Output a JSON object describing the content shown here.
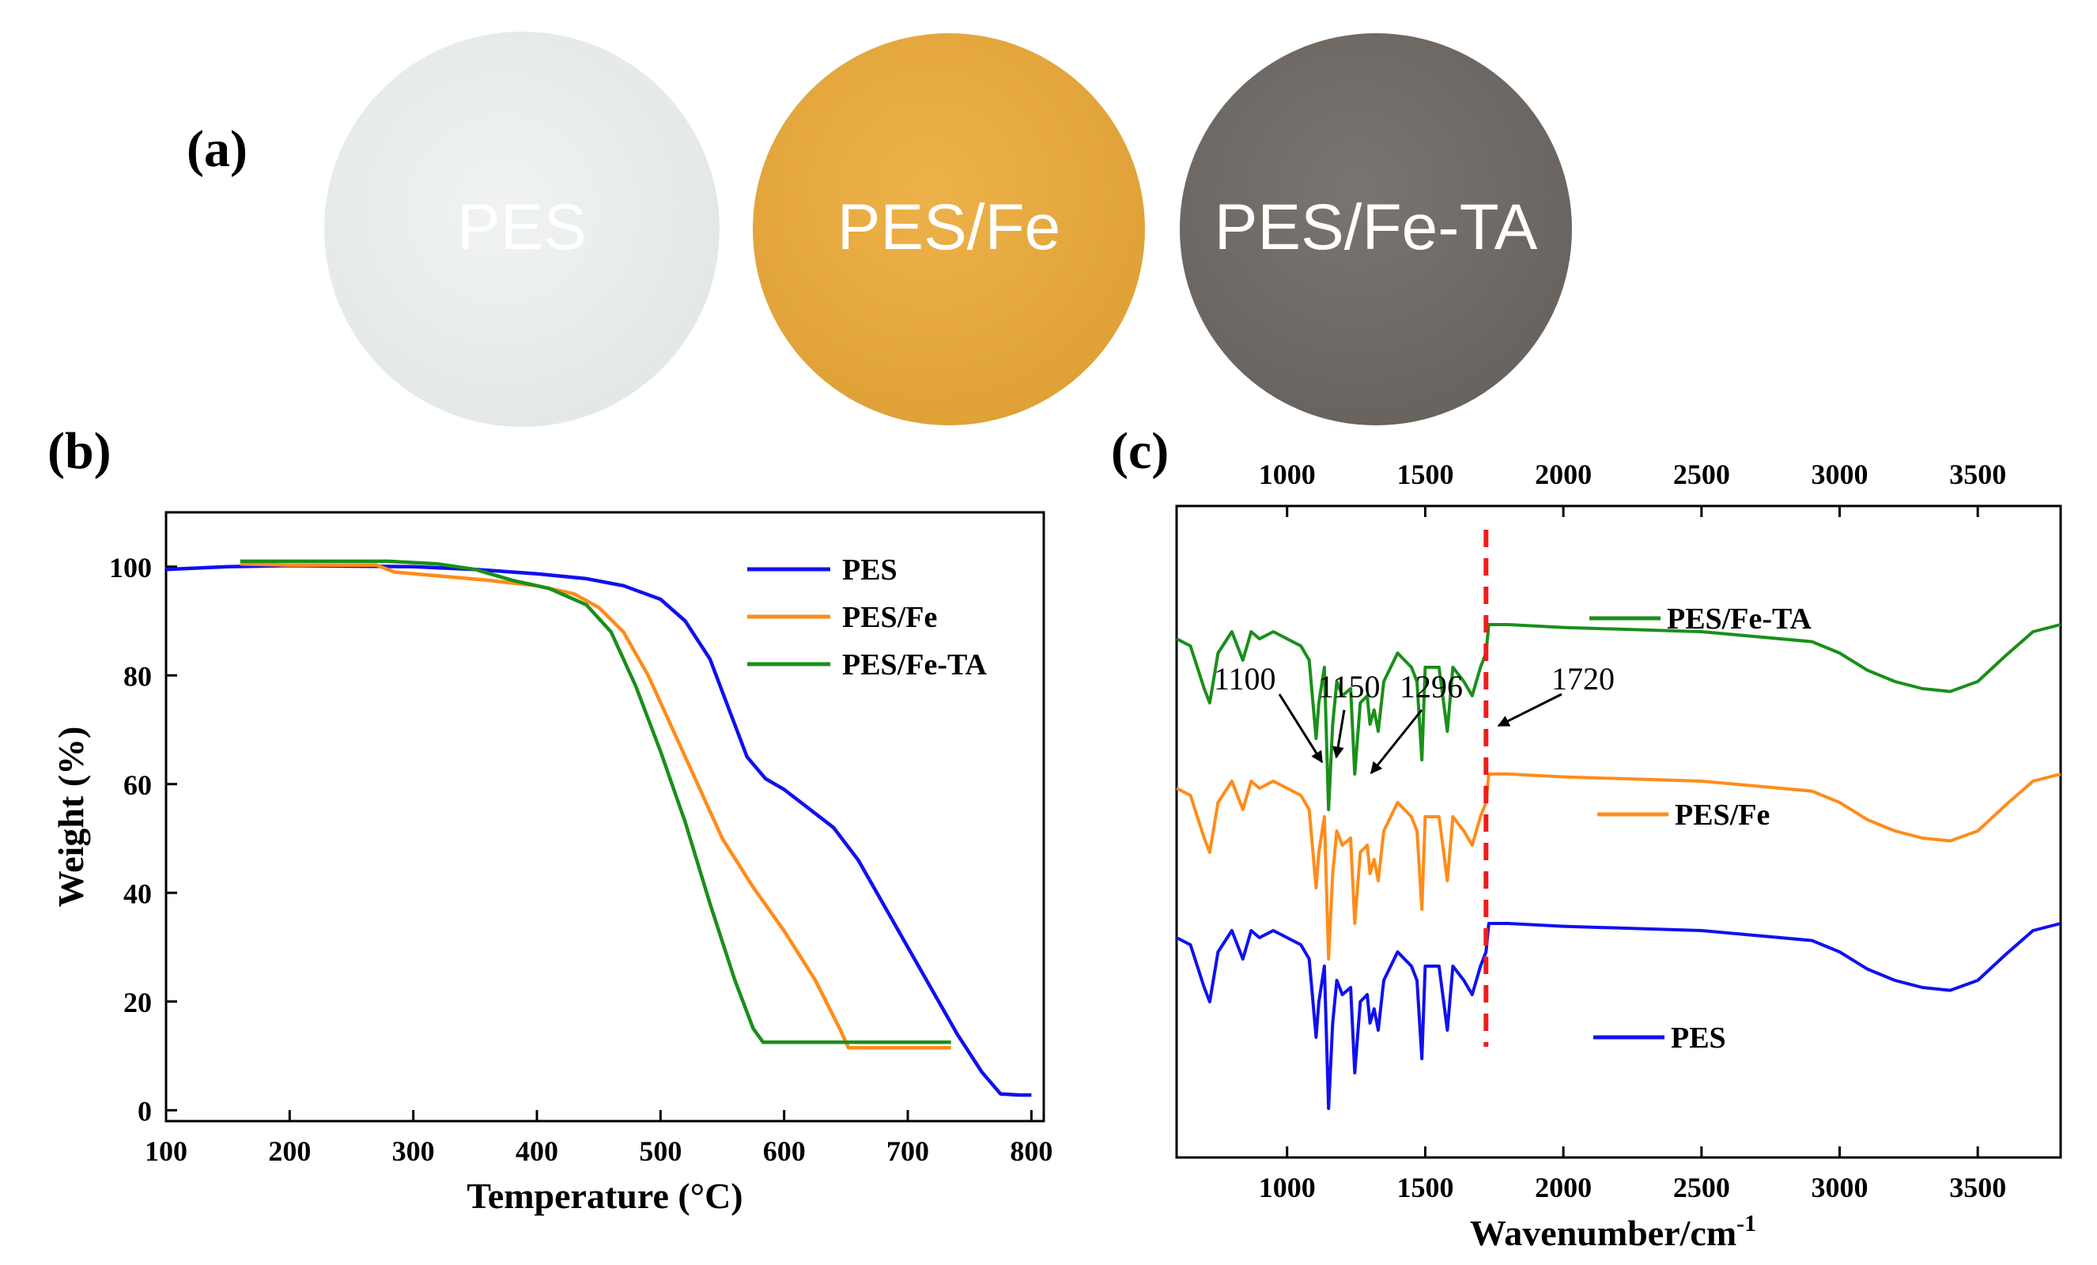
{
  "panel_a": {
    "label": "(a)",
    "circles": [
      {
        "name": "PES",
        "color": "#e8ecea"
      },
      {
        "name": "PES/Fe",
        "color": "#e6a83e"
      },
      {
        "name": "PES/Fe-TA",
        "color": "#716c66"
      }
    ]
  },
  "panel_b": {
    "label": "(b)"
  },
  "panel_c": {
    "label": "(c)"
  },
  "chart_data": [
    {
      "type": "line",
      "title": "",
      "xlabel": "Temperature (°C)",
      "ylabel": "Weight (%)",
      "xlim": [
        100,
        810
      ],
      "ylim": [
        -2,
        110
      ],
      "xticks": [
        100,
        200,
        300,
        400,
        500,
        600,
        700,
        800
      ],
      "yticks": [
        0,
        20,
        40,
        60,
        80,
        100
      ],
      "legend_position": "top-right",
      "series": [
        {
          "name": "PES",
          "color": "#1010f0",
          "points": [
            [
              100,
              99.5
            ],
            [
              150,
              100
            ],
            [
              200,
              100.2
            ],
            [
              300,
              100
            ],
            [
              350,
              99.5
            ],
            [
              400,
              98.7
            ],
            [
              440,
              97.8
            ],
            [
              470,
              96.5
            ],
            [
              500,
              94
            ],
            [
              520,
              90
            ],
            [
              540,
              83
            ],
            [
              555,
              74
            ],
            [
              570,
              65
            ],
            [
              585,
              61
            ],
            [
              600,
              59
            ],
            [
              620,
              55.5
            ],
            [
              640,
              52
            ],
            [
              660,
              46
            ],
            [
              680,
              38
            ],
            [
              700,
              30
            ],
            [
              720,
              22
            ],
            [
              740,
              14
            ],
            [
              760,
              7
            ],
            [
              775,
              3
            ],
            [
              790,
              2.8
            ],
            [
              800,
              2.8
            ]
          ]
        },
        {
          "name": "PES/Fe",
          "color": "#ff8c1a",
          "points": [
            [
              160,
              100.5
            ],
            [
              200,
              100.3
            ],
            [
              270,
              100.3
            ],
            [
              285,
              99
            ],
            [
              320,
              98.3
            ],
            [
              360,
              97.5
            ],
            [
              400,
              96.5
            ],
            [
              430,
              95
            ],
            [
              450,
              92.5
            ],
            [
              470,
              88
            ],
            [
              490,
              80
            ],
            [
              510,
              70
            ],
            [
              530,
              60
            ],
            [
              550,
              50
            ],
            [
              575,
              41
            ],
            [
              600,
              33
            ],
            [
              625,
              24
            ],
            [
              645,
              15
            ],
            [
              652,
              11.5
            ],
            [
              680,
              11.5
            ],
            [
              735,
              11.5
            ]
          ]
        },
        {
          "name": "PES/Fe-TA",
          "color": "#1a8f1a",
          "points": [
            [
              160,
              101
            ],
            [
              200,
              101
            ],
            [
              280,
              101
            ],
            [
              320,
              100.5
            ],
            [
              350,
              99.5
            ],
            [
              380,
              97.5
            ],
            [
              410,
              96
            ],
            [
              440,
              93
            ],
            [
              460,
              88
            ],
            [
              480,
              78
            ],
            [
              500,
              66
            ],
            [
              520,
              53
            ],
            [
              540,
              38
            ],
            [
              560,
              24
            ],
            [
              575,
              15
            ],
            [
              583,
              12.5
            ],
            [
              620,
              12.5
            ],
            [
              735,
              12.5
            ]
          ]
        }
      ]
    },
    {
      "type": "line",
      "title": "",
      "xlabel": "Wavenumber/cm",
      "xlabel_superscript": "-1",
      "ylabel": "",
      "xlim": [
        600,
        3800
      ],
      "xticks": [
        1000,
        1500,
        2000,
        2500,
        3000,
        3500
      ],
      "annotations": [
        {
          "text": "1100",
          "x": 1100
        },
        {
          "text": "1150",
          "x": 1150
        },
        {
          "text": "1296",
          "x": 1296
        },
        {
          "text": "1720",
          "x": 1720
        }
      ],
      "reference_line_x": 1720,
      "reference_line_color": "#ee1c1c",
      "series": [
        {
          "name": "PES/Fe-TA",
          "color": "#1a8f1a",
          "offset": 3.05,
          "points": [
            [
              600,
              0.9
            ],
            [
              650,
              0.85
            ],
            [
              700,
              0.55
            ],
            [
              720,
              0.45
            ],
            [
              750,
              0.8
            ],
            [
              800,
              0.95
            ],
            [
              840,
              0.75
            ],
            [
              870,
              0.95
            ],
            [
              900,
              0.9
            ],
            [
              950,
              0.95
            ],
            [
              1000,
              0.9
            ],
            [
              1050,
              0.85
            ],
            [
              1080,
              0.75
            ],
            [
              1105,
              0.2
            ],
            [
              1115,
              0.45
            ],
            [
              1135,
              0.7
            ],
            [
              1150,
              -0.3
            ],
            [
              1165,
              0.3
            ],
            [
              1180,
              0.6
            ],
            [
              1200,
              0.5
            ],
            [
              1230,
              0.55
            ],
            [
              1245,
              -0.05
            ],
            [
              1265,
              0.45
            ],
            [
              1290,
              0.5
            ],
            [
              1300,
              0.3
            ],
            [
              1315,
              0.4
            ],
            [
              1330,
              0.25
            ],
            [
              1350,
              0.6
            ],
            [
              1400,
              0.8
            ],
            [
              1450,
              0.7
            ],
            [
              1470,
              0.6
            ],
            [
              1488,
              0.05
            ],
            [
              1500,
              0.7
            ],
            [
              1550,
              0.7
            ],
            [
              1580,
              0.25
            ],
            [
              1600,
              0.7
            ],
            [
              1640,
              0.6
            ],
            [
              1670,
              0.5
            ],
            [
              1700,
              0.7
            ],
            [
              1720,
              0.8
            ],
            [
              1730,
              1.0
            ],
            [
              1800,
              1.0
            ],
            [
              2000,
              0.98
            ],
            [
              2500,
              0.95
            ],
            [
              2900,
              0.88
            ],
            [
              3000,
              0.8
            ],
            [
              3100,
              0.68
            ],
            [
              3200,
              0.6
            ],
            [
              3300,
              0.55
            ],
            [
              3400,
              0.53
            ],
            [
              3500,
              0.6
            ],
            [
              3600,
              0.78
            ],
            [
              3700,
              0.95
            ],
            [
              3800,
              1.0
            ]
          ]
        },
        {
          "name": "PES/Fe",
          "color": "#ff8c1a",
          "offset": 2.0,
          "points": [
            [
              600,
              0.9
            ],
            [
              650,
              0.85
            ],
            [
              700,
              0.55
            ],
            [
              720,
              0.45
            ],
            [
              750,
              0.8
            ],
            [
              800,
              0.95
            ],
            [
              840,
              0.75
            ],
            [
              870,
              0.95
            ],
            [
              900,
              0.9
            ],
            [
              950,
              0.95
            ],
            [
              1000,
              0.9
            ],
            [
              1050,
              0.85
            ],
            [
              1080,
              0.75
            ],
            [
              1105,
              0.2
            ],
            [
              1115,
              0.45
            ],
            [
              1135,
              0.7
            ],
            [
              1150,
              -0.3
            ],
            [
              1165,
              0.3
            ],
            [
              1180,
              0.6
            ],
            [
              1200,
              0.5
            ],
            [
              1230,
              0.55
            ],
            [
              1245,
              -0.05
            ],
            [
              1265,
              0.45
            ],
            [
              1290,
              0.5
            ],
            [
              1300,
              0.3
            ],
            [
              1315,
              0.4
            ],
            [
              1330,
              0.25
            ],
            [
              1350,
              0.6
            ],
            [
              1400,
              0.8
            ],
            [
              1450,
              0.7
            ],
            [
              1470,
              0.6
            ],
            [
              1488,
              0.05
            ],
            [
              1500,
              0.7
            ],
            [
              1550,
              0.7
            ],
            [
              1580,
              0.25
            ],
            [
              1600,
              0.7
            ],
            [
              1640,
              0.6
            ],
            [
              1670,
              0.5
            ],
            [
              1700,
              0.7
            ],
            [
              1720,
              0.8
            ],
            [
              1730,
              1.0
            ],
            [
              1800,
              1.0
            ],
            [
              2000,
              0.98
            ],
            [
              2500,
              0.95
            ],
            [
              2900,
              0.88
            ],
            [
              3000,
              0.8
            ],
            [
              3100,
              0.68
            ],
            [
              3200,
              0.6
            ],
            [
              3300,
              0.55
            ],
            [
              3400,
              0.53
            ],
            [
              3500,
              0.6
            ],
            [
              3600,
              0.78
            ],
            [
              3700,
              0.95
            ],
            [
              3800,
              1.0
            ]
          ]
        },
        {
          "name": "PES",
          "color": "#1010f0",
          "offset": 0.95,
          "points": [
            [
              600,
              0.9
            ],
            [
              650,
              0.85
            ],
            [
              700,
              0.55
            ],
            [
              720,
              0.45
            ],
            [
              750,
              0.8
            ],
            [
              800,
              0.95
            ],
            [
              840,
              0.75
            ],
            [
              870,
              0.95
            ],
            [
              900,
              0.9
            ],
            [
              950,
              0.95
            ],
            [
              1000,
              0.9
            ],
            [
              1050,
              0.85
            ],
            [
              1080,
              0.75
            ],
            [
              1105,
              0.2
            ],
            [
              1115,
              0.45
            ],
            [
              1135,
              0.7
            ],
            [
              1150,
              -0.3
            ],
            [
              1165,
              0.3
            ],
            [
              1180,
              0.6
            ],
            [
              1200,
              0.5
            ],
            [
              1230,
              0.55
            ],
            [
              1245,
              -0.05
            ],
            [
              1265,
              0.45
            ],
            [
              1290,
              0.5
            ],
            [
              1300,
              0.3
            ],
            [
              1315,
              0.4
            ],
            [
              1330,
              0.25
            ],
            [
              1350,
              0.6
            ],
            [
              1400,
              0.8
            ],
            [
              1450,
              0.7
            ],
            [
              1470,
              0.6
            ],
            [
              1488,
              0.05
            ],
            [
              1500,
              0.7
            ],
            [
              1550,
              0.7
            ],
            [
              1580,
              0.25
            ],
            [
              1600,
              0.7
            ],
            [
              1640,
              0.6
            ],
            [
              1670,
              0.5
            ],
            [
              1700,
              0.7
            ],
            [
              1720,
              0.8
            ],
            [
              1730,
              1.0
            ],
            [
              1800,
              1.0
            ],
            [
              2000,
              0.98
            ],
            [
              2500,
              0.95
            ],
            [
              2900,
              0.88
            ],
            [
              3000,
              0.8
            ],
            [
              3100,
              0.68
            ],
            [
              3200,
              0.6
            ],
            [
              3300,
              0.55
            ],
            [
              3400,
              0.53
            ],
            [
              3500,
              0.6
            ],
            [
              3600,
              0.78
            ],
            [
              3700,
              0.95
            ],
            [
              3800,
              1.0
            ]
          ]
        }
      ]
    }
  ]
}
